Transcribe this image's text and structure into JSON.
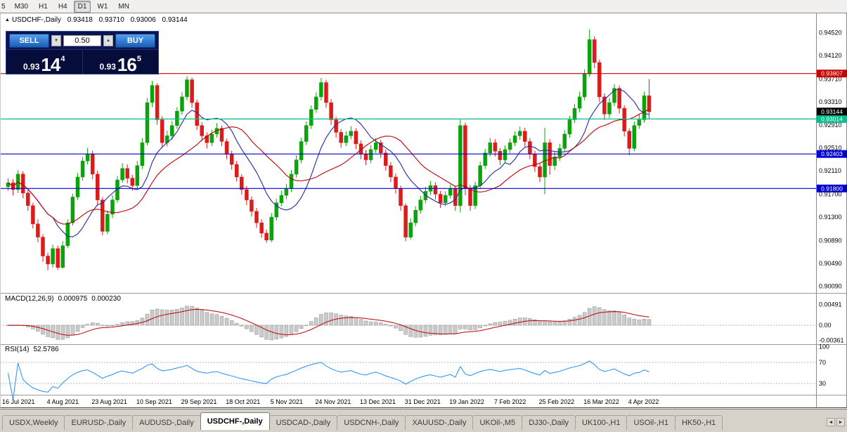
{
  "icons": {
    "collapse": "▲",
    "spin_down": "▼",
    "spin_up": "▲",
    "scroll_left": "◄",
    "scroll_right": "►"
  },
  "toolbar": {
    "timeframes": [
      {
        "label": "5",
        "clipped": true
      },
      {
        "label": "M30"
      },
      {
        "label": "H1"
      },
      {
        "label": "H4"
      },
      {
        "label": "D1",
        "active": true
      },
      {
        "label": "W1"
      },
      {
        "label": "MN"
      }
    ]
  },
  "trade_panel": {
    "sell_label": "SELL",
    "buy_label": "BUY",
    "volume": "0.50",
    "bid": {
      "prefix": "0.93",
      "big": "14",
      "sup": "4"
    },
    "ask": {
      "prefix": "0.93",
      "big": "16",
      "sup": "5"
    }
  },
  "chart_data": {
    "type": "candlestick",
    "symbol_period": "USDCHF-,Daily",
    "ohlc": {
      "open": "0.93418",
      "high": "0.93710",
      "low": "0.93006",
      "close": "0.93144"
    },
    "price_range": [
      0.9,
      0.9481
    ],
    "price_axis_ticks": [
      "0.94520",
      "0.94120",
      "0.93710",
      "0.93310",
      "0.92910",
      "0.92510",
      "0.92110",
      "0.91700",
      "0.91300",
      "0.90890",
      "0.90490",
      "0.90090"
    ],
    "colors": {
      "up": "#0ba30b",
      "down": "#dd1b1b"
    },
    "hlines": [
      {
        "price": 0.93807,
        "label": "0.93807",
        "color": "#cc0000"
      },
      {
        "price": 0.93014,
        "label": "0.93014",
        "color": "#00c08b"
      },
      {
        "price": 0.92403,
        "label": "0.92403",
        "color": "#0000d0"
      },
      {
        "price": 0.918,
        "label": "0.91800",
        "color": "#0000d0"
      }
    ],
    "current_price": {
      "value": 0.93144,
      "label": "0.93144",
      "bg": "#000000"
    },
    "moving_averages": [
      {
        "type": "sma",
        "period": 10,
        "color": "#26269e"
      },
      {
        "type": "sma",
        "period": 20,
        "color": "#c00000"
      }
    ],
    "macd": {
      "title": "MACD(12,26,9)",
      "value_main": "0.000975",
      "value_signal": "0.000230",
      "fast": 12,
      "slow": 26,
      "signal": 9,
      "axis": [
        "0.00491",
        "0.00",
        "-0.00361"
      ]
    },
    "rsi": {
      "title": "RSI(14)",
      "value": "52.5786",
      "period": 14,
      "axis": [
        "100",
        "70",
        "30"
      ],
      "levels": [
        70,
        30
      ]
    },
    "date_labels": [
      {
        "text": "16 Jul 2021",
        "i": 0
      },
      {
        "text": "4 Aug 2021",
        "i": 9
      },
      {
        "text": "23 Aug 2021",
        "i": 18
      },
      {
        "text": "10 Sep 2021",
        "i": 27
      },
      {
        "text": "29 Sep 2021",
        "i": 36
      },
      {
        "text": "18 Oct 2021",
        "i": 45
      },
      {
        "text": "5 Nov 2021",
        "i": 54
      },
      {
        "text": "24 Nov 2021",
        "i": 63
      },
      {
        "text": "13 Dec 2021",
        "i": 72
      },
      {
        "text": "31 Dec 2021",
        "i": 81
      },
      {
        "text": "19 Jan 2022",
        "i": 90
      },
      {
        "text": "7 Feb 2022",
        "i": 99
      },
      {
        "text": "25 Feb 2022",
        "i": 108
      },
      {
        "text": "16 Mar 2022",
        "i": 117
      },
      {
        "text": "4 Apr 2022",
        "i": 126
      }
    ],
    "candles": [
      [
        0.9183,
        0.9198,
        0.9176,
        0.919
      ],
      [
        0.919,
        0.9196,
        0.9168,
        0.9178
      ],
      [
        0.9178,
        0.9212,
        0.9172,
        0.9205
      ],
      [
        0.9205,
        0.921,
        0.9163,
        0.9172
      ],
      [
        0.9172,
        0.9178,
        0.9141,
        0.915
      ],
      [
        0.915,
        0.9155,
        0.911,
        0.9118
      ],
      [
        0.9118,
        0.9126,
        0.9086,
        0.9095
      ],
      [
        0.9095,
        0.91,
        0.9052,
        0.9062
      ],
      [
        0.9062,
        0.9068,
        0.9037,
        0.9048
      ],
      [
        0.9048,
        0.9082,
        0.9042,
        0.9075
      ],
      [
        0.9075,
        0.908,
        0.9038,
        0.9042
      ],
      [
        0.9042,
        0.9088,
        0.904,
        0.908
      ],
      [
        0.908,
        0.9126,
        0.9076,
        0.912
      ],
      [
        0.912,
        0.9171,
        0.9115,
        0.9165
      ],
      [
        0.9165,
        0.9207,
        0.916,
        0.92
      ],
      [
        0.92,
        0.9235,
        0.9194,
        0.9228
      ],
      [
        0.9228,
        0.9251,
        0.9222,
        0.924
      ],
      [
        0.924,
        0.9246,
        0.9196,
        0.9205
      ],
      [
        0.9205,
        0.9211,
        0.915,
        0.916
      ],
      [
        0.916,
        0.9165,
        0.9098,
        0.9105
      ],
      [
        0.9105,
        0.9142,
        0.91,
        0.9135
      ],
      [
        0.9135,
        0.9168,
        0.9128,
        0.916
      ],
      [
        0.916,
        0.9202,
        0.9155,
        0.9195
      ],
      [
        0.9195,
        0.9224,
        0.919,
        0.9215
      ],
      [
        0.9215,
        0.9222,
        0.9189,
        0.9198
      ],
      [
        0.9198,
        0.9204,
        0.9176,
        0.9185
      ],
      [
        0.9185,
        0.9228,
        0.918,
        0.922
      ],
      [
        0.922,
        0.9268,
        0.9214,
        0.926
      ],
      [
        0.926,
        0.9338,
        0.9255,
        0.933
      ],
      [
        0.933,
        0.9368,
        0.9322,
        0.936
      ],
      [
        0.936,
        0.9364,
        0.9291,
        0.93
      ],
      [
        0.93,
        0.9306,
        0.9251,
        0.926
      ],
      [
        0.926,
        0.9281,
        0.9253,
        0.9272
      ],
      [
        0.9272,
        0.9298,
        0.9265,
        0.929
      ],
      [
        0.929,
        0.9322,
        0.9284,
        0.9315
      ],
      [
        0.9315,
        0.9348,
        0.9309,
        0.934
      ],
      [
        0.934,
        0.9376,
        0.9334,
        0.937
      ],
      [
        0.937,
        0.9374,
        0.9321,
        0.933
      ],
      [
        0.933,
        0.9335,
        0.9282,
        0.929
      ],
      [
        0.929,
        0.9296,
        0.9263,
        0.9272
      ],
      [
        0.9272,
        0.9278,
        0.925,
        0.926
      ],
      [
        0.926,
        0.9283,
        0.9254,
        0.9275
      ],
      [
        0.9275,
        0.9294,
        0.9269,
        0.9285
      ],
      [
        0.9285,
        0.929,
        0.9254,
        0.9262
      ],
      [
        0.9262,
        0.9267,
        0.9231,
        0.924
      ],
      [
        0.924,
        0.9246,
        0.9213,
        0.9222
      ],
      [
        0.9222,
        0.9228,
        0.9192,
        0.92
      ],
      [
        0.92,
        0.9205,
        0.9169,
        0.9178
      ],
      [
        0.9178,
        0.9184,
        0.9151,
        0.916
      ],
      [
        0.916,
        0.9166,
        0.9131,
        0.914
      ],
      [
        0.914,
        0.9146,
        0.9111,
        0.912
      ],
      [
        0.912,
        0.9126,
        0.9094,
        0.9102
      ],
      [
        0.9102,
        0.9108,
        0.9085,
        0.909
      ],
      [
        0.909,
        0.9137,
        0.9086,
        0.913
      ],
      [
        0.913,
        0.9162,
        0.9124,
        0.9155
      ],
      [
        0.9155,
        0.9176,
        0.9149,
        0.9168
      ],
      [
        0.9168,
        0.9188,
        0.9161,
        0.918
      ],
      [
        0.918,
        0.9212,
        0.9174,
        0.9205
      ],
      [
        0.9205,
        0.9238,
        0.9199,
        0.923
      ],
      [
        0.923,
        0.9269,
        0.9224,
        0.9262
      ],
      [
        0.9262,
        0.9297,
        0.9256,
        0.929
      ],
      [
        0.929,
        0.9325,
        0.9284,
        0.9318
      ],
      [
        0.9318,
        0.9348,
        0.9312,
        0.934
      ],
      [
        0.934,
        0.9373,
        0.9334,
        0.9365
      ],
      [
        0.9365,
        0.937,
        0.9321,
        0.933
      ],
      [
        0.933,
        0.9336,
        0.9291,
        0.93
      ],
      [
        0.93,
        0.9305,
        0.9269,
        0.9278
      ],
      [
        0.9278,
        0.9284,
        0.9251,
        0.926
      ],
      [
        0.926,
        0.928,
        0.9254,
        0.9272
      ],
      [
        0.9272,
        0.9289,
        0.9266,
        0.928
      ],
      [
        0.928,
        0.9285,
        0.9249,
        0.9258
      ],
      [
        0.9258,
        0.9264,
        0.9231,
        0.924
      ],
      [
        0.924,
        0.9247,
        0.9221,
        0.923
      ],
      [
        0.923,
        0.9256,
        0.9224,
        0.9248
      ],
      [
        0.9248,
        0.9268,
        0.9242,
        0.926
      ],
      [
        0.926,
        0.9265,
        0.9233,
        0.9242
      ],
      [
        0.9242,
        0.9248,
        0.9211,
        0.922
      ],
      [
        0.922,
        0.9226,
        0.9191,
        0.92
      ],
      [
        0.92,
        0.9206,
        0.9171,
        0.918
      ],
      [
        0.918,
        0.9185,
        0.9141,
        0.915
      ],
      [
        0.915,
        0.9154,
        0.9088,
        0.9095
      ],
      [
        0.9095,
        0.9128,
        0.9091,
        0.912
      ],
      [
        0.912,
        0.9149,
        0.9114,
        0.9142
      ],
      [
        0.9142,
        0.9167,
        0.9136,
        0.916
      ],
      [
        0.916,
        0.9183,
        0.9154,
        0.9175
      ],
      [
        0.9175,
        0.9193,
        0.9169,
        0.9185
      ],
      [
        0.9185,
        0.9191,
        0.9161,
        0.917
      ],
      [
        0.917,
        0.9176,
        0.9146,
        0.9155
      ],
      [
        0.9155,
        0.9175,
        0.9149,
        0.9168
      ],
      [
        0.9168,
        0.9187,
        0.9162,
        0.918
      ],
      [
        0.918,
        0.9185,
        0.9141,
        0.915
      ],
      [
        0.915,
        0.9302,
        0.9138,
        0.929
      ],
      [
        0.929,
        0.9295,
        0.9168,
        0.918
      ],
      [
        0.918,
        0.9186,
        0.9141,
        0.915
      ],
      [
        0.915,
        0.9192,
        0.9144,
        0.9185
      ],
      [
        0.9185,
        0.9227,
        0.9179,
        0.922
      ],
      [
        0.922,
        0.9249,
        0.9214,
        0.9242
      ],
      [
        0.9242,
        0.9268,
        0.9236,
        0.926
      ],
      [
        0.926,
        0.9266,
        0.9236,
        0.9245
      ],
      [
        0.9245,
        0.9251,
        0.9221,
        0.923
      ],
      [
        0.923,
        0.9255,
        0.9224,
        0.9248
      ],
      [
        0.9248,
        0.9267,
        0.9242,
        0.926
      ],
      [
        0.926,
        0.928,
        0.9254,
        0.9272
      ],
      [
        0.9272,
        0.9288,
        0.9265,
        0.928
      ],
      [
        0.928,
        0.9286,
        0.9253,
        0.9262
      ],
      [
        0.9262,
        0.9268,
        0.9231,
        0.924
      ],
      [
        0.924,
        0.9246,
        0.9209,
        0.9218
      ],
      [
        0.9218,
        0.9224,
        0.9191,
        0.92
      ],
      [
        0.92,
        0.9286,
        0.917,
        0.926
      ],
      [
        0.926,
        0.9266,
        0.9204,
        0.922
      ],
      [
        0.922,
        0.9244,
        0.9212,
        0.9235
      ],
      [
        0.9235,
        0.9258,
        0.9228,
        0.925
      ],
      [
        0.925,
        0.9282,
        0.9244,
        0.9275
      ],
      [
        0.9275,
        0.9307,
        0.9269,
        0.93
      ],
      [
        0.93,
        0.9328,
        0.9294,
        0.932
      ],
      [
        0.932,
        0.9349,
        0.9313,
        0.934
      ],
      [
        0.934,
        0.9388,
        0.9334,
        0.938
      ],
      [
        0.938,
        0.9458,
        0.9375,
        0.944
      ],
      [
        0.944,
        0.9446,
        0.939,
        0.94
      ],
      [
        0.94,
        0.9405,
        0.9331,
        0.934
      ],
      [
        0.934,
        0.9346,
        0.93,
        0.931
      ],
      [
        0.931,
        0.9338,
        0.9303,
        0.933
      ],
      [
        0.933,
        0.9362,
        0.9324,
        0.9355
      ],
      [
        0.9355,
        0.936,
        0.9311,
        0.932
      ],
      [
        0.932,
        0.9325,
        0.9271,
        0.928
      ],
      [
        0.928,
        0.9285,
        0.9238,
        0.925
      ],
      [
        0.925,
        0.9297,
        0.9245,
        0.929
      ],
      [
        0.929,
        0.9309,
        0.9284,
        0.93
      ],
      [
        0.93,
        0.9349,
        0.9295,
        0.9342
      ],
      [
        0.9342,
        0.9371,
        0.9301,
        0.9314
      ]
    ]
  },
  "tabs": {
    "items": [
      {
        "label": "USDX,Weekly"
      },
      {
        "label": "EURUSD-,Daily"
      },
      {
        "label": "AUDUSD-,Daily"
      },
      {
        "label": "USDCHF-,Daily",
        "active": true
      },
      {
        "label": "USDCAD-,Daily"
      },
      {
        "label": "USDCNH-,Daily"
      },
      {
        "label": "XAUUSD-,Daily"
      },
      {
        "label": "UKOil-,M5"
      },
      {
        "label": "DJ30-,Daily"
      },
      {
        "label": "UK100-,H1"
      },
      {
        "label": "USOil-,H1"
      },
      {
        "label": "HK50-,H1"
      }
    ]
  }
}
